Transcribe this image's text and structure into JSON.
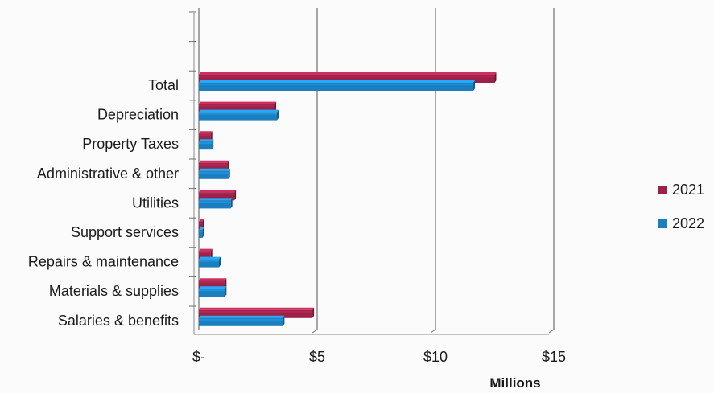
{
  "chart_data": {
    "type": "bar",
    "orientation": "horizontal",
    "categories": [
      "Total",
      "Depreciation",
      "Property Taxes",
      "Administrative & other",
      "Utilities",
      "Support services",
      "Repairs & maintenance",
      "Materials & supplies",
      "Salaries & benefits"
    ],
    "series": [
      {
        "name": "2021",
        "color": "#9b2148",
        "values": [
          12.5,
          3.2,
          0.5,
          1.2,
          1.5,
          0.15,
          0.5,
          1.1,
          4.8
        ]
      },
      {
        "name": "2022",
        "color": "#1b7fbf",
        "values": [
          11.6,
          3.3,
          0.55,
          1.25,
          1.35,
          0.15,
          0.85,
          1.1,
          3.55
        ]
      }
    ],
    "xlabel": "Millions",
    "xlim": [
      0,
      15
    ],
    "xticks": [
      {
        "value": 0,
        "label": "$-"
      },
      {
        "value": 5,
        "label": "$5"
      },
      {
        "value": 10,
        "label": "$10"
      },
      {
        "value": 15,
        "label": "$15"
      }
    ],
    "grid": true,
    "legend_position": "right"
  }
}
